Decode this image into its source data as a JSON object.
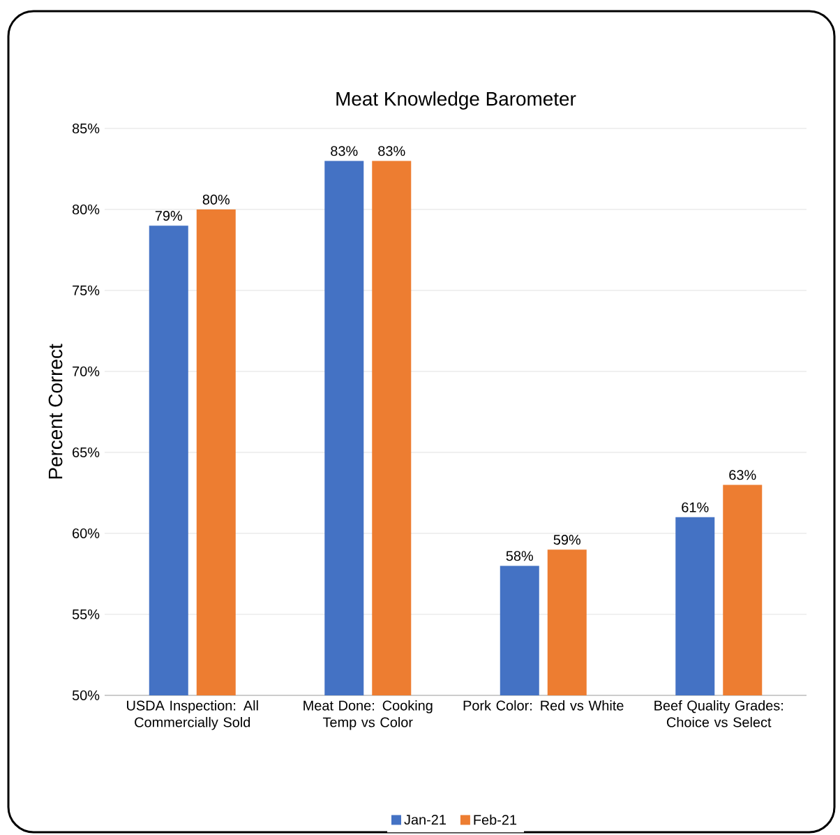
{
  "chart_data": {
    "type": "bar",
    "title": "Meat Knowledge Barometer",
    "ylabel": "Percent Correct",
    "categories": [
      "USDA Inspection: All Commercially Sold",
      "Meat Done: Cooking Temp vs Color",
      "Pork Color: Red vs White",
      "Beef Quality Grades: Choice vs Select"
    ],
    "series": [
      {
        "name": "Jan-21",
        "color": "#4472c4",
        "values": [
          79,
          83,
          58,
          61
        ],
        "value_labels": [
          "79%",
          "83%",
          "58%",
          "61%"
        ]
      },
      {
        "name": "Feb-21",
        "color": "#ed7d31",
        "values": [
          80,
          83,
          59,
          63
        ],
        "value_labels": [
          "80%",
          "83%",
          "59%",
          "63%"
        ]
      }
    ],
    "ylim": [
      50,
      85
    ],
    "yticks": [
      {
        "value": 50,
        "label": "50%"
      },
      {
        "value": 55,
        "label": "55%"
      },
      {
        "value": 60,
        "label": "60%"
      },
      {
        "value": 65,
        "label": "65%"
      },
      {
        "value": 70,
        "label": "70%"
      },
      {
        "value": 75,
        "label": "75%"
      },
      {
        "value": 80,
        "label": "80%"
      },
      {
        "value": 85,
        "label": "85%"
      }
    ],
    "grid": "y",
    "legend": "bottom"
  }
}
